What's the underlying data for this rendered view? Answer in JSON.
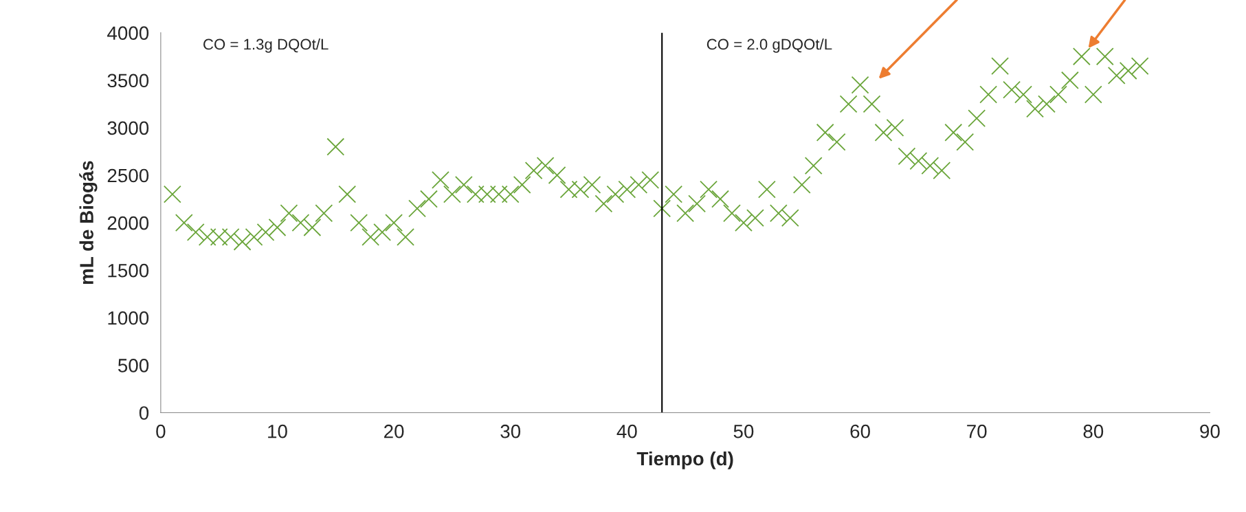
{
  "chart_data": {
    "type": "scatter",
    "xlabel": "Tiempo (d)",
    "ylabel": "mL de Biogás",
    "x": [
      1,
      2,
      3,
      4,
      5,
      6,
      7,
      8,
      9,
      10,
      11,
      12,
      13,
      14,
      15,
      16,
      17,
      18,
      19,
      20,
      21,
      22,
      23,
      24,
      25,
      26,
      27,
      28,
      29,
      30,
      31,
      32,
      33,
      34,
      35,
      36,
      37,
      38,
      39,
      40,
      41,
      42,
      43,
      44,
      45,
      46,
      47,
      48,
      49,
      50,
      51,
      52,
      53,
      54,
      55,
      56,
      57,
      58,
      59,
      60,
      61,
      62,
      63,
      64,
      65,
      66,
      67,
      68,
      69,
      70,
      71,
      72,
      73,
      74,
      75,
      76,
      77,
      78,
      79,
      80,
      81,
      82,
      83,
      84
    ],
    "series": [
      {
        "color": "#6aa53a",
        "values": [
          2300,
          2000,
          1900,
          1850,
          1850,
          1850,
          1800,
          1850,
          1900,
          1950,
          2100,
          2000,
          1950,
          2100,
          2800,
          2300,
          2000,
          1850,
          1900,
          2000,
          1850,
          2150,
          2250,
          2450,
          2300,
          2400,
          2300,
          2300,
          2300,
          2300,
          2400,
          2550,
          2600,
          2500,
          2350,
          2350,
          2400,
          2200,
          2300,
          2350,
          2400,
          2450,
          2150,
          2300,
          2100,
          2200,
          2350,
          2250,
          2100,
          2000,
          2050,
          2350,
          2100,
          2050,
          2400,
          2600,
          2950,
          2850,
          3250,
          3450,
          3250,
          2950,
          3000,
          2700,
          2650,
          2600,
          2550,
          2950,
          2850,
          3100,
          3350,
          3650,
          3400,
          3350,
          3200,
          3250,
          3350,
          3500,
          3750,
          3350,
          3750,
          3550,
          3600,
          3650
        ]
      }
    ],
    "marker": "cross",
    "xlim": [
      0,
      90
    ],
    "xticks": [
      0,
      10,
      20,
      30,
      40,
      50,
      60,
      70,
      80,
      90
    ],
    "ylim": [
      0,
      4000
    ],
    "yticks": [
      0,
      500,
      1000,
      1500,
      2000,
      2500,
      3000,
      3500,
      4000
    ],
    "grid": false,
    "ref_lines": [
      {
        "axis": "x",
        "value": 43,
        "color": "#000000",
        "line_style": "solid"
      }
    ],
    "annotations": [
      "CO = 1.3g DQOt/L",
      "CO = 2.0 gDQOt/L"
    ]
  }
}
